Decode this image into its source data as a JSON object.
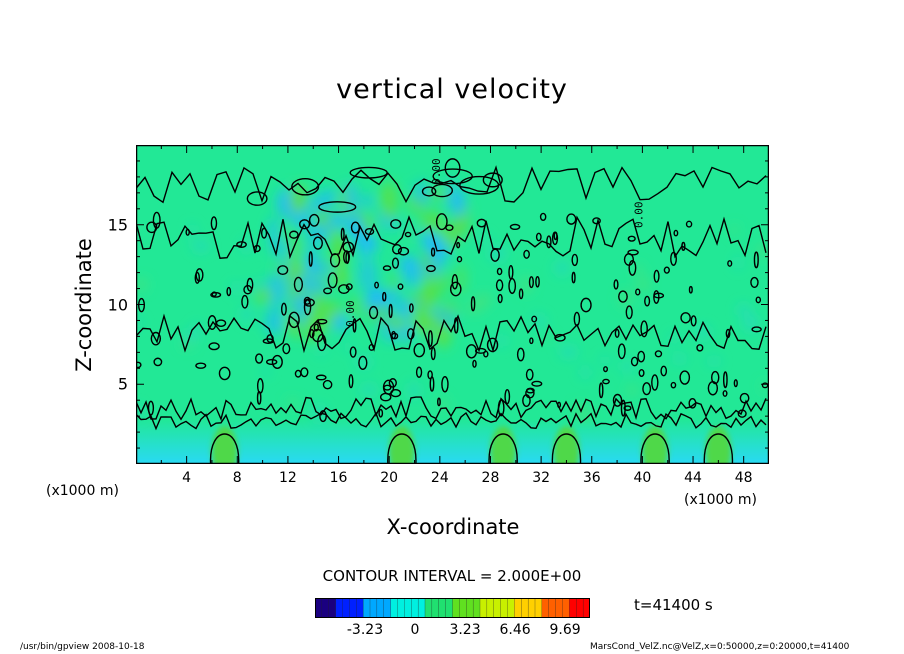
{
  "chart_data": {
    "type": "heatmap",
    "title": "vertical velocity",
    "xlabel": "X-coordinate",
    "ylabel": "Z-coordinate",
    "x_unit_left": "(x1000 m)",
    "x_unit_right": "(x1000 m)",
    "xlim": [
      0,
      50
    ],
    "ylim": [
      0,
      20
    ],
    "x_ticks": [
      4,
      8,
      12,
      16,
      20,
      24,
      28,
      32,
      36,
      40,
      44,
      48
    ],
    "y_ticks": [
      5,
      10,
      15
    ],
    "contour_label": "0.00",
    "contour_interval_text": "CONTOUR INTERVAL = 2.000E+00",
    "colorbar": {
      "ticks": [
        -3.23,
        0,
        3.23,
        6.46,
        9.69
      ],
      "tick_labels": [
        "-3.23",
        "0",
        "3.23",
        "6.46",
        "9.69"
      ],
      "range": [
        -6.46,
        11.3
      ]
    },
    "updrafts_near_surface_x": [
      7,
      21,
      29,
      34,
      41,
      46
    ],
    "turbulent_band_z": [
      2.5,
      16
    ]
  },
  "time_text": "t=41400 s",
  "footer_left": "/usr/bin/gpview   2008-10-18",
  "footer_right": "MarsCond_VelZ.nc@VelZ,x=0:50000,z=0:20000,t=41400",
  "colors": {
    "background_field": "#22e896",
    "downdraft": "#1eb8ff",
    "updraft": "#5de040"
  }
}
